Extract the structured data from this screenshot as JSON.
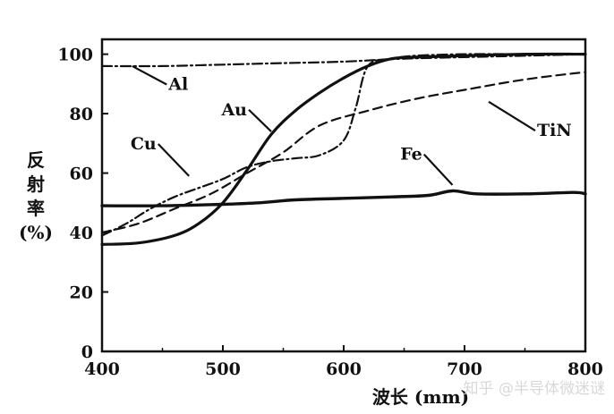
{
  "chart_data": {
    "type": "line",
    "title": "",
    "xlabel": "波长 (mm)",
    "ylabel_lines": [
      "反",
      "射",
      "率",
      "(%)"
    ],
    "xlim": [
      400,
      800
    ],
    "ylim": [
      0,
      105
    ],
    "xticks": [
      400,
      500,
      600,
      700,
      800
    ],
    "yticks": [
      0,
      20,
      40,
      60,
      80,
      100
    ],
    "grid": false,
    "legend": "inline labels with leader lines",
    "series": [
      {
        "name": "Al",
        "style": "dashdot",
        "x": [
          400,
          450,
          500,
          550,
          600,
          650,
          700,
          750,
          800
        ],
        "y": [
          96,
          96,
          96.5,
          97,
          97.5,
          98.5,
          99,
          99.5,
          100
        ]
      },
      {
        "name": "Au",
        "style": "solid",
        "x": [
          400,
          430,
          460,
          480,
          500,
          520,
          540,
          560,
          580,
          600,
          620,
          640,
          660,
          700,
          750,
          800
        ],
        "y": [
          36,
          36.5,
          39,
          43,
          50,
          61,
          73,
          81,
          87,
          92,
          96,
          98.5,
          99,
          99.5,
          100,
          100
        ]
      },
      {
        "name": "Cu",
        "style": "dashdot",
        "x": [
          400,
          420,
          440,
          460,
          480,
          500,
          520,
          540,
          560,
          580,
          600,
          610,
          620,
          640,
          660,
          700,
          750,
          800
        ],
        "y": [
          39,
          43,
          48,
          52,
          55,
          58,
          62,
          64,
          65,
          66,
          71,
          82,
          96,
          98.5,
          99.5,
          100,
          100,
          100
        ]
      },
      {
        "name": "TiN",
        "style": "dash",
        "x": [
          400,
          430,
          460,
          490,
          520,
          550,
          580,
          620,
          660,
          700,
          750,
          800
        ],
        "y": [
          40,
          43,
          48,
          53,
          60,
          67,
          76,
          81,
          85,
          88,
          91.5,
          94
        ]
      },
      {
        "name": "Fe",
        "style": "solid",
        "x": [
          400,
          450,
          500,
          530,
          560,
          600,
          640,
          670,
          690,
          710,
          750,
          790,
          800
        ],
        "y": [
          49,
          49,
          49.5,
          50,
          51,
          51.5,
          52,
          52.5,
          54,
          53,
          53,
          53.5,
          53
        ]
      }
    ],
    "annotations": [
      {
        "text": "Al",
        "series": "Al",
        "label_at": [
          455,
          88
        ],
        "point_at": [
          425,
          96
        ]
      },
      {
        "text": "Au",
        "series": "Au",
        "label_at": [
          520,
          79.5
        ],
        "point_at": [
          540,
          74
        ]
      },
      {
        "text": "Cu",
        "series": "Cu",
        "label_at": [
          445,
          68
        ],
        "point_at": [
          472,
          59
        ]
      },
      {
        "text": "TiN",
        "series": "TiN",
        "label_at": [
          760,
          72.5
        ],
        "point_at": [
          720,
          84
        ]
      },
      {
        "text": "Fe",
        "series": "Fe",
        "label_at": [
          665,
          64.5
        ],
        "point_at": [
          690,
          56
        ]
      }
    ]
  },
  "watermark": "知乎 @半导体微迷谜"
}
